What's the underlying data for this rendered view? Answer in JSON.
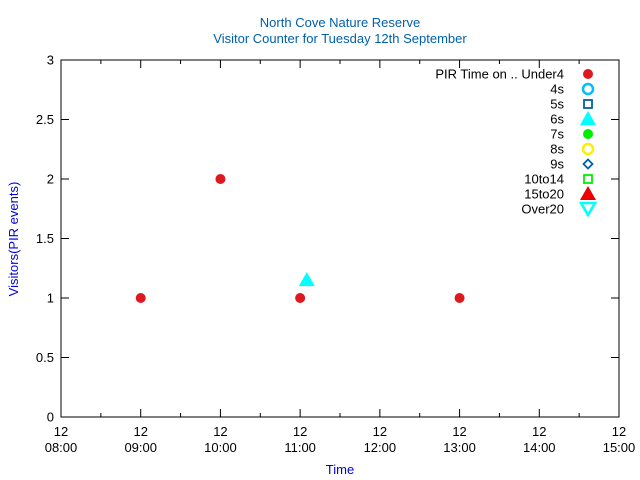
{
  "chart_data": {
    "type": "scatter",
    "title": "North Cove Nature Reserve",
    "subtitle": "Visitor Counter for Tuesday 12th September",
    "xlabel": "Time",
    "ylabel": "Visitors(PIR events)",
    "ylim": [
      0,
      3
    ],
    "xlim": [
      "08:00",
      "15:00"
    ],
    "x_tick_labels": [
      {
        "top": "12",
        "bottom": "08:00"
      },
      {
        "top": "12",
        "bottom": "09:00"
      },
      {
        "top": "12",
        "bottom": "10:00"
      },
      {
        "top": "12",
        "bottom": "11:00"
      },
      {
        "top": "12",
        "bottom": "12:00"
      },
      {
        "top": "12",
        "bottom": "13:00"
      },
      {
        "top": "12",
        "bottom": "14:00"
      },
      {
        "top": "12",
        "bottom": "15:00"
      }
    ],
    "y_tick_labels": [
      "0",
      "0.5",
      "1",
      "1.5",
      "2",
      "2.5",
      "3"
    ],
    "grid": false,
    "legend_position": "top-right",
    "series": [
      {
        "name": "PIR Time on .. Under4",
        "marker": "filled-circle",
        "color": "#dd181f",
        "points": [
          {
            "x": "09:00",
            "y": 1
          },
          {
            "x": "10:00",
            "y": 2
          },
          {
            "x": "11:00",
            "y": 1
          },
          {
            "x": "13:00",
            "y": 1
          }
        ]
      },
      {
        "name": "4s",
        "marker": "open-circle",
        "color": "#00bfff",
        "points": []
      },
      {
        "name": "5s",
        "marker": "open-square",
        "color": "#0060ad",
        "points": []
      },
      {
        "name": "6s",
        "marker": "filled-triangle",
        "color": "#00ffff",
        "points": [
          {
            "x": "11:05",
            "y": 1.15
          }
        ]
      },
      {
        "name": "7s",
        "marker": "filled-circle",
        "color": "#00ee00",
        "points": []
      },
      {
        "name": "8s",
        "marker": "open-circle",
        "color": "#ffee00",
        "points": []
      },
      {
        "name": "9s",
        "marker": "open-diamond",
        "color": "#0060ad",
        "points": []
      },
      {
        "name": "10to14",
        "marker": "open-square",
        "color": "#00ee00",
        "points": []
      },
      {
        "name": "15to20",
        "marker": "filled-triangle",
        "color": "#ee0000",
        "points": []
      },
      {
        "name": "Over20",
        "marker": "open-triangle-down",
        "color": "#00ffff",
        "points": []
      }
    ],
    "colors": {
      "title": "#0060ad",
      "axis_label": "#0000dd",
      "axis": "#000000"
    }
  }
}
